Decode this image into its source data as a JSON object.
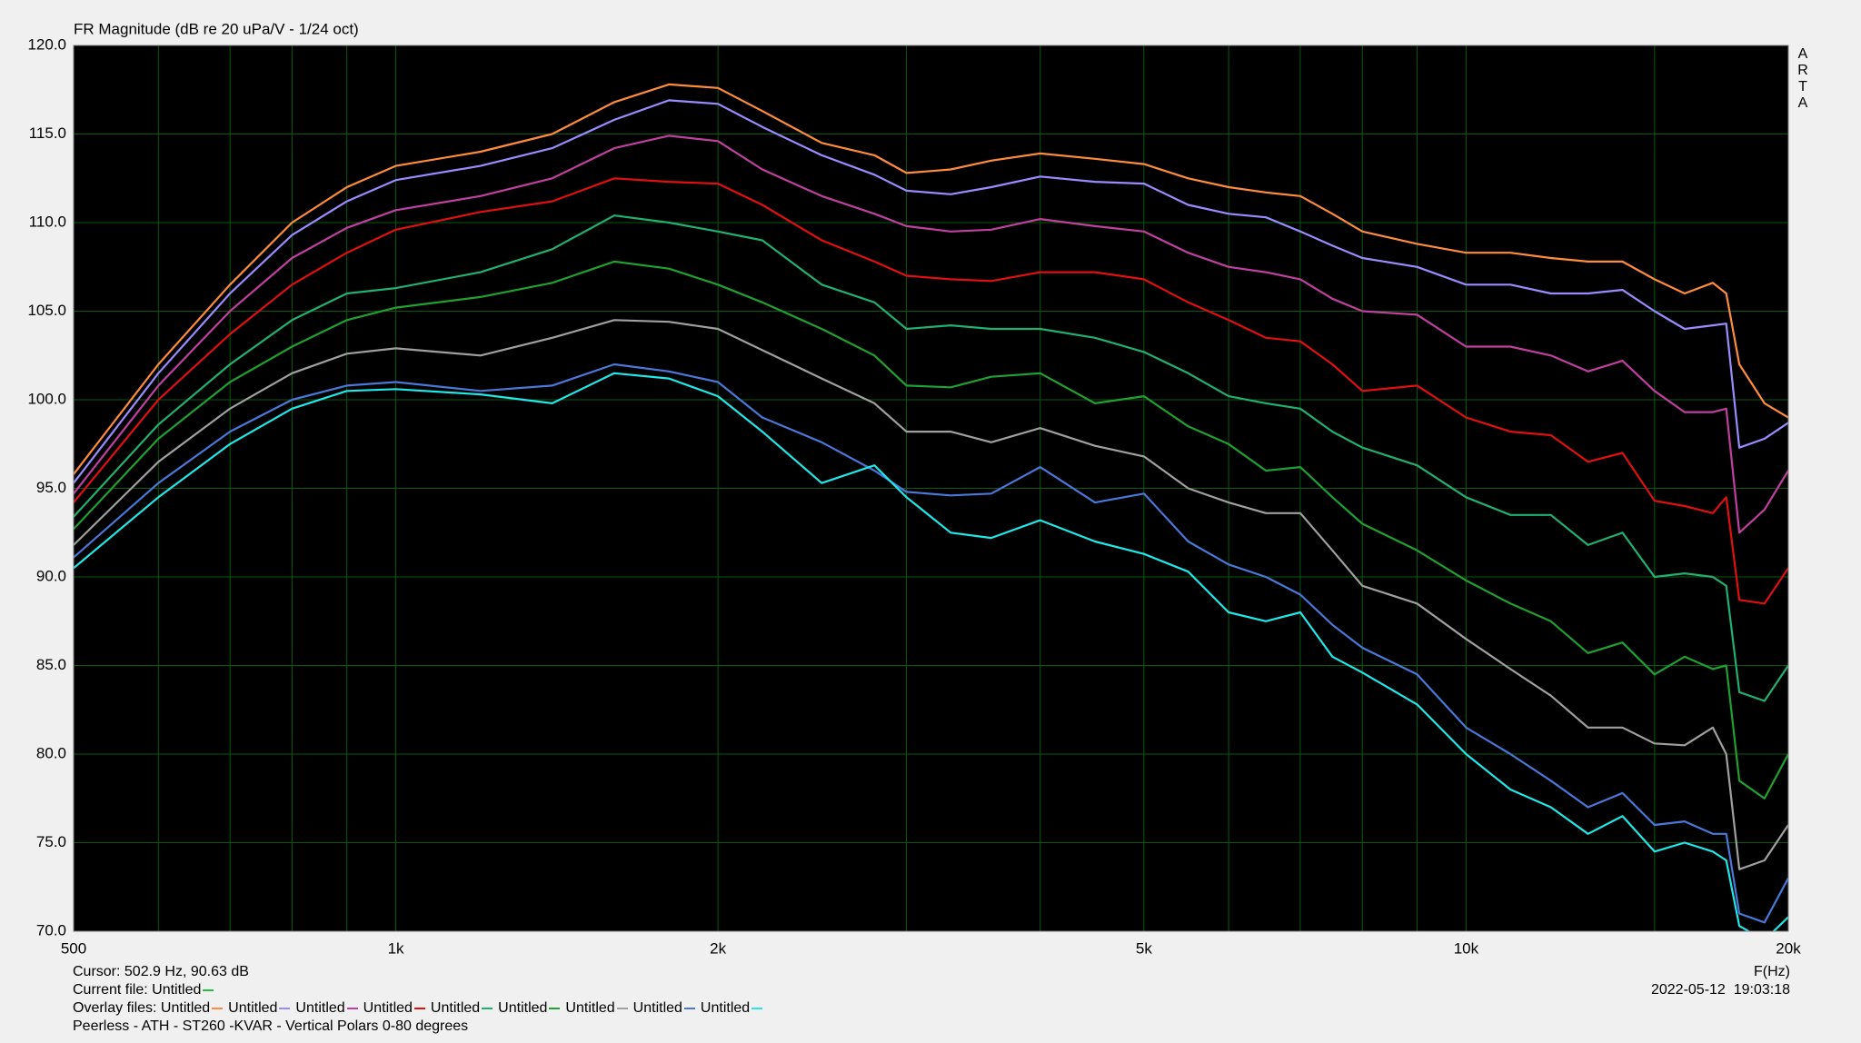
{
  "chart_data": {
    "type": "line",
    "title": "FR Magnitude (dB re 20 uPa/V - 1/24 oct)",
    "watermark": [
      "A",
      "R",
      "T",
      "A"
    ],
    "x_label": "F(Hz)",
    "log_x": true,
    "grid": true,
    "xlim": [
      500,
      20000
    ],
    "xticks": [
      500,
      {
        "value": 1000,
        "label": "1k"
      },
      {
        "value": 2000,
        "label": "2k"
      },
      {
        "value": 5000,
        "label": "5k"
      },
      {
        "value": 10000,
        "label": "10k"
      },
      {
        "value": 20000,
        "label": "20k"
      }
    ],
    "xgrid_minor": [
      600,
      700,
      800,
      900,
      3000,
      4000,
      6000,
      7000,
      8000,
      9000,
      15000
    ],
    "ylim": [
      70,
      120
    ],
    "yticks": [
      {
        "value": 70,
        "label": "70.0"
      },
      {
        "value": 75,
        "label": "75.0"
      },
      {
        "value": 80,
        "label": "80.0"
      },
      {
        "value": 85,
        "label": "85.0"
      },
      {
        "value": 90,
        "label": "90.0"
      },
      {
        "value": 95,
        "label": "95.0"
      },
      {
        "value": 100,
        "label": "100.0"
      },
      {
        "value": 105,
        "label": "105.0"
      },
      {
        "value": 110,
        "label": "110.0"
      },
      {
        "value": 115,
        "label": "115.0"
      },
      {
        "value": 120,
        "label": "120.0"
      }
    ],
    "cursor": "Cursor: 502.9 Hz, 90.63 dB",
    "current_file_label": "Current file:",
    "current_file": {
      "name": "Untitled",
      "color": "#22c040"
    },
    "overlay_label": "Overlay files:",
    "timestamp": "2022-05-12  19:03:18",
    "description": "Peerless - ATH - ST260 -KVAR - Vertical Polars 0-80 degrees",
    "x": [
      500,
      600,
      700,
      800,
      900,
      1000,
      1200,
      1400,
      1600,
      1800,
      2000,
      2200,
      2500,
      2800,
      3000,
      3300,
      3600,
      4000,
      4500,
      5000,
      5500,
      6000,
      6500,
      7000,
      7500,
      8000,
      9000,
      10000,
      11000,
      12000,
      13000,
      14000,
      15000,
      16000,
      17000,
      17500,
      18000,
      19000,
      20000
    ],
    "series": [
      {
        "name": "Untitled",
        "color": "#ff8c3c",
        "values": [
          95.8,
          102,
          106.5,
          110,
          112,
          113.2,
          114,
          115,
          116.8,
          117.8,
          117.6,
          116.3,
          114.5,
          113.8,
          112.8,
          113,
          113.5,
          113.9,
          113.6,
          113.3,
          112.5,
          112,
          111.7,
          111.5,
          110.5,
          109.5,
          108.8,
          108.3,
          108.3,
          108,
          107.8,
          107.8,
          106.8,
          106,
          106.6,
          106,
          102,
          99.8,
          99
        ]
      },
      {
        "name": "Untitled",
        "color": "#9a8cff",
        "values": [
          95.3,
          101.5,
          106,
          109.3,
          111.2,
          112.4,
          113.2,
          114.2,
          115.8,
          116.9,
          116.7,
          115.4,
          113.8,
          112.7,
          111.8,
          111.6,
          112,
          112.6,
          112.3,
          112.2,
          111,
          110.5,
          110.3,
          109.5,
          108.7,
          108,
          107.5,
          106.5,
          106.5,
          106,
          106,
          106.2,
          105,
          104,
          104.2,
          104.3,
          97.3,
          97.8,
          98.7
        ]
      },
      {
        "name": "Untitled",
        "color": "#c040a0",
        "values": [
          94.7,
          100.8,
          105,
          108,
          109.7,
          110.7,
          111.5,
          112.5,
          114.2,
          114.9,
          114.6,
          113,
          111.5,
          110.5,
          109.8,
          109.5,
          109.6,
          110.2,
          109.8,
          109.5,
          108.3,
          107.5,
          107.2,
          106.8,
          105.7,
          105,
          104.8,
          103,
          103,
          102.5,
          101.6,
          102.2,
          100.5,
          99.3,
          99.3,
          99.5,
          92.5,
          93.8,
          96
        ]
      },
      {
        "name": "Untitled",
        "color": "#e01010",
        "values": [
          94.2,
          100,
          103.7,
          106.5,
          108.3,
          109.6,
          110.6,
          111.2,
          112.5,
          112.3,
          112.2,
          111,
          109,
          107.8,
          107,
          106.8,
          106.7,
          107.2,
          107.2,
          106.8,
          105.5,
          104.5,
          103.5,
          103.3,
          102,
          100.5,
          100.8,
          99,
          98.2,
          98,
          96.5,
          97,
          94.3,
          94,
          93.6,
          94.5,
          88.7,
          88.5,
          90.5
        ]
      },
      {
        "name": "Untitled",
        "color": "#22b070",
        "values": [
          93.4,
          98.6,
          102,
          104.5,
          106,
          106.3,
          107.2,
          108.5,
          110.4,
          110,
          109.5,
          109,
          106.5,
          105.5,
          104,
          104.2,
          104,
          104,
          103.5,
          102.7,
          101.5,
          100.2,
          99.8,
          99.5,
          98.2,
          97.3,
          96.3,
          94.5,
          93.5,
          93.5,
          91.8,
          92.5,
          90,
          90.2,
          90,
          89.5,
          83.5,
          83,
          85
        ]
      },
      {
        "name": "Untitled",
        "color": "#20a030",
        "values": [
          92.7,
          97.8,
          101,
          103,
          104.5,
          105.2,
          105.8,
          106.6,
          107.8,
          107.4,
          106.5,
          105.5,
          104,
          102.5,
          100.8,
          100.7,
          101.3,
          101.5,
          99.8,
          100.2,
          98.5,
          97.5,
          96,
          96.2,
          94.5,
          93,
          91.5,
          89.8,
          88.5,
          87.5,
          85.7,
          86.3,
          84.5,
          85.5,
          84.8,
          85,
          78.5,
          77.5,
          80
        ]
      },
      {
        "name": "Untitled",
        "color": "#a0a0a0",
        "values": [
          91.8,
          96.5,
          99.5,
          101.5,
          102.6,
          102.9,
          102.5,
          103.5,
          104.5,
          104.4,
          104,
          102.8,
          101.2,
          99.8,
          98.2,
          98.2,
          97.6,
          98.4,
          97.4,
          96.8,
          95,
          94.2,
          93.6,
          93.6,
          91.5,
          89.5,
          88.5,
          86.5,
          84.8,
          83.3,
          81.5,
          81.5,
          80.6,
          80.5,
          81.5,
          80,
          73.5,
          74,
          76
        ]
      },
      {
        "name": "Untitled",
        "color": "#4a78d8",
        "values": [
          91.1,
          95.3,
          98.2,
          100,
          100.8,
          101,
          100.5,
          100.8,
          102,
          101.6,
          101,
          99,
          97.6,
          96,
          94.8,
          94.6,
          94.7,
          96.2,
          94.2,
          94.7,
          92,
          90.7,
          90,
          89,
          87.3,
          86,
          84.5,
          81.5,
          80,
          78.5,
          77,
          77.8,
          76,
          76.2,
          75.5,
          75.5,
          71,
          70.5,
          73
        ]
      },
      {
        "name": "Untitled",
        "color": "#20e8e8",
        "values": [
          90.5,
          94.5,
          97.5,
          99.5,
          100.5,
          100.6,
          100.3,
          99.8,
          101.5,
          101.2,
          100.2,
          98.2,
          95.3,
          96.3,
          94.5,
          92.5,
          92.2,
          93.2,
          92,
          91.3,
          90.3,
          88,
          87.5,
          88,
          85.5,
          84.6,
          82.8,
          80,
          78,
          77,
          75.5,
          76.5,
          74.5,
          75,
          74.5,
          74,
          70.3,
          69.5,
          70.8
        ]
      }
    ]
  }
}
